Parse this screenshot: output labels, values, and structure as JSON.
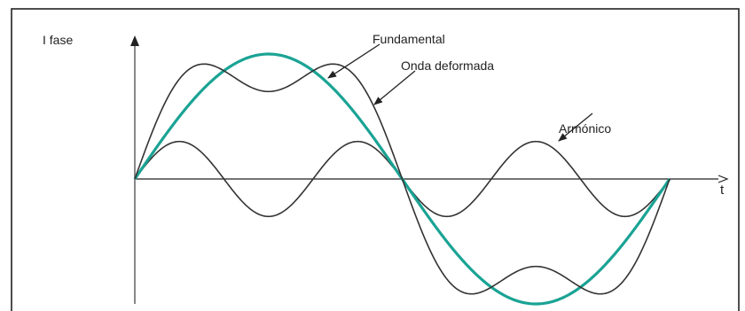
{
  "labels": {
    "y_axis": "I fase",
    "x_axis": "t",
    "fundamental": "Fundamental",
    "distorted": "Onda deformada",
    "harmonic": "Armónico"
  },
  "colors": {
    "fundamental": "#1aa394",
    "distorted": "#333333",
    "harmonic": "#333333",
    "axes": "#222222",
    "frame": "#222222"
  },
  "waves": {
    "fundamental": {
      "amplitude": 1.0,
      "harmonic_order": 1
    },
    "harmonic": {
      "amplitude": 0.3,
      "harmonic_order": 3
    },
    "distorted": {
      "components": [
        "fundamental",
        "harmonic"
      ]
    }
  }
}
